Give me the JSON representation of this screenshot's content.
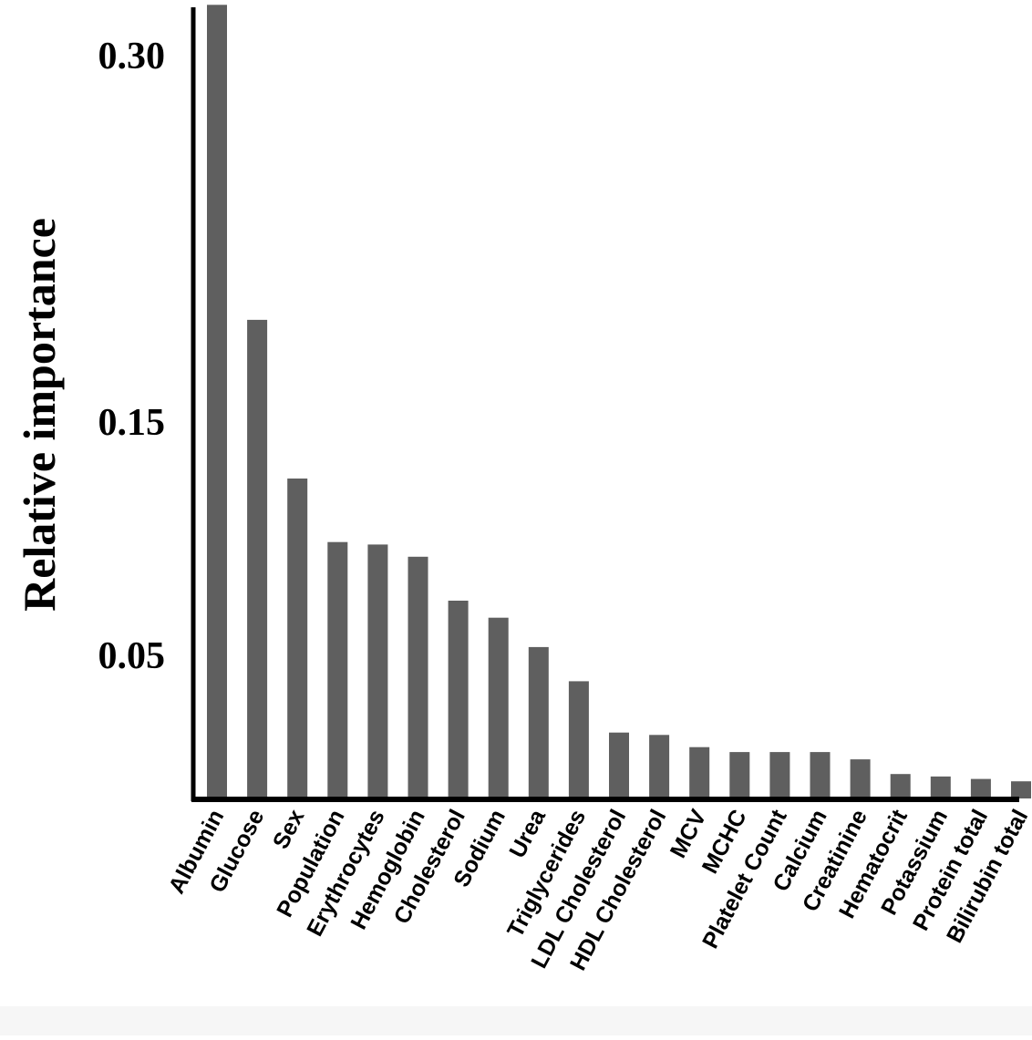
{
  "chart_data": {
    "type": "bar",
    "ylabel": "Relative importance",
    "xlabel": "",
    "title": "",
    "yticks": [
      {
        "value": 0.05,
        "label": "0.05"
      },
      {
        "value": 0.15,
        "label": "0.15"
      },
      {
        "value": 0.3,
        "label": "0.30"
      }
    ],
    "ylim": [
      0.0,
      0.33
    ],
    "grid": false,
    "bar_color": "#5f5f5f",
    "axis_color": "#000000",
    "categories": [
      "Albumin",
      "Glucose",
      "Sex",
      "Population",
      "Erythrocytes",
      "Hemoglobin",
      "Cholesterol",
      "Sodium",
      "Urea",
      "Triglycerides",
      "LDL Cholesterol",
      "HDL Cholesterol",
      "MCV",
      "MCHC",
      "Platelet Count",
      "Calcium",
      "Creatinine",
      "Hematocrit",
      "Potassium",
      "Protein total",
      "Bilirubin total"
    ],
    "values": [
      0.325,
      0.196,
      0.131,
      0.105,
      0.104,
      0.099,
      0.081,
      0.074,
      0.062,
      0.048,
      0.027,
      0.026,
      0.021,
      0.019,
      0.019,
      0.019,
      0.016,
      0.01,
      0.009,
      0.008,
      0.007
    ]
  }
}
